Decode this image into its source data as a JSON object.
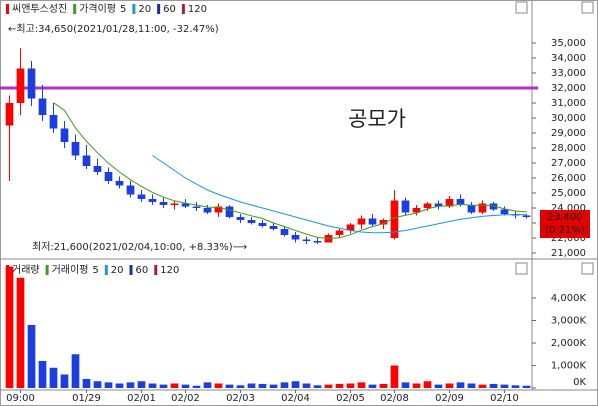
{
  "chart_data": {
    "type": "candlestick",
    "title": "씨앤투스성진",
    "up_color": "#ff0000",
    "down_color": "#1a3ee0",
    "categories": [
      null,
      "09:00",
      null,
      null,
      null,
      null,
      null,
      "01/29",
      null,
      null,
      null,
      null,
      "02/01",
      null,
      null,
      null,
      "02/02",
      null,
      null,
      null,
      null,
      "02/03",
      null,
      null,
      null,
      null,
      "02/04",
      null,
      null,
      null,
      null,
      "02/05",
      null,
      null,
      null,
      "02/08",
      null,
      null,
      null,
      null,
      "02/09",
      null,
      null,
      null,
      null,
      "02/10",
      null,
      null
    ],
    "ohlc": [
      [
        29500,
        31500,
        25800,
        31000
      ],
      [
        31000,
        34650,
        30200,
        33300
      ],
      [
        33300,
        33800,
        30800,
        31300
      ],
      [
        31300,
        32200,
        29800,
        30200
      ],
      [
        30200,
        31000,
        29000,
        29300
      ],
      [
        29300,
        29800,
        28000,
        28400
      ],
      [
        28400,
        28900,
        27200,
        27500
      ],
      [
        27500,
        28200,
        26600,
        26800
      ],
      [
        26800,
        27300,
        26200,
        26400
      ],
      [
        26400,
        26700,
        25600,
        25800
      ],
      [
        25800,
        26100,
        25300,
        25500
      ],
      [
        25500,
        25800,
        24700,
        24900
      ],
      [
        24900,
        25200,
        24400,
        24600
      ],
      [
        24600,
        24900,
        24200,
        24400
      ],
      [
        24400,
        24700,
        24000,
        24200
      ],
      [
        24200,
        24500,
        23900,
        24300
      ],
      [
        24300,
        24600,
        24000,
        24100
      ],
      [
        24100,
        24400,
        23800,
        24000
      ],
      [
        24000,
        24200,
        23600,
        23700
      ],
      [
        23700,
        24300,
        23400,
        24100
      ],
      [
        24100,
        24200,
        23300,
        23400
      ],
      [
        23400,
        23600,
        23000,
        23200
      ],
      [
        23200,
        23400,
        22900,
        23000
      ],
      [
        23000,
        23200,
        22700,
        22800
      ],
      [
        22800,
        23000,
        22500,
        22600
      ],
      [
        22600,
        22800,
        22100,
        22200
      ],
      [
        22200,
        22400,
        21700,
        21900
      ],
      [
        21900,
        22100,
        21600,
        21800
      ],
      [
        21800,
        22000,
        21600,
        21700
      ],
      [
        21700,
        22300,
        21700,
        22200
      ],
      [
        22200,
        22600,
        22000,
        22500
      ],
      [
        22500,
        23000,
        22300,
        22900
      ],
      [
        22900,
        23500,
        22600,
        23300
      ],
      [
        23300,
        23600,
        22800,
        22900
      ],
      [
        22900,
        23300,
        22600,
        23200
      ],
      [
        22000,
        25200,
        21900,
        24500
      ],
      [
        24500,
        24700,
        23500,
        23700
      ],
      [
        23700,
        24200,
        23500,
        24000
      ],
      [
        24000,
        24400,
        23800,
        24300
      ],
      [
        24300,
        24500,
        23900,
        24100
      ],
      [
        24100,
        24800,
        24000,
        24600
      ],
      [
        24600,
        24900,
        24100,
        24200
      ],
      [
        24200,
        24400,
        23600,
        23700
      ],
      [
        23700,
        24500,
        23600,
        24300
      ],
      [
        24300,
        24400,
        23800,
        23900
      ],
      [
        23900,
        24100,
        23500,
        23600
      ],
      [
        23600,
        23800,
        23300,
        23500
      ],
      [
        23500,
        23600,
        23300,
        23400
      ]
    ],
    "ma_label": "가격이평",
    "ma_series": [
      {
        "name": "5",
        "color": "#3f9a1f",
        "values": [
          null,
          null,
          null,
          null,
          31020,
          30500,
          29340,
          28440,
          27680,
          26980,
          26400,
          25880,
          25440,
          25040,
          24720,
          24480,
          24320,
          24200,
          24060,
          24040,
          23860,
          23680,
          23480,
          23300,
          23000,
          22760,
          22500,
          22260,
          22040,
          21960,
          22020,
          22220,
          22520,
          22760,
          22960,
          23360,
          23520,
          23660,
          23940,
          24120,
          24140,
          24240,
          24180,
          24180,
          24140,
          23940,
          23800,
          23740
        ]
      },
      {
        "name": "20",
        "color": "#1e95d8",
        "values": [
          null,
          null,
          null,
          null,
          null,
          null,
          null,
          null,
          null,
          null,
          null,
          null,
          null,
          27500,
          27000,
          26500,
          26000,
          25600,
          25200,
          24900,
          24650,
          24400,
          24200,
          24000,
          23800,
          23600,
          23400,
          23200,
          23000,
          22800,
          22650,
          22500,
          22400,
          22350,
          22350,
          22400,
          22500,
          22650,
          22800,
          22950,
          23100,
          23250,
          23350,
          23450,
          23500,
          23550,
          23550,
          23550
        ]
      }
    ],
    "ma_legend_extra": [
      {
        "name": "60",
        "color": "#1a2f9a"
      },
      {
        "name": "120",
        "color": "#a0203a"
      }
    ],
    "ylim": [
      20667,
      37733
    ],
    "yticks": [
      {
        "value": 21000,
        "label": "21,000"
      },
      {
        "value": 22000,
        "label": "22,000"
      },
      {
        "value": 23000,
        "label": "23,000"
      },
      {
        "value": 24000,
        "label": "24,000"
      },
      {
        "value": 25000,
        "label": "25,000"
      },
      {
        "value": 26000,
        "label": "26,000"
      },
      {
        "value": 27000,
        "label": "27,000"
      },
      {
        "value": 28000,
        "label": "28,000"
      },
      {
        "value": 29000,
        "label": "29,000"
      },
      {
        "value": 30000,
        "label": "30,000"
      },
      {
        "value": 31000,
        "label": "31,000"
      },
      {
        "value": 32000,
        "label": "32,000"
      },
      {
        "value": 33000,
        "label": "33,000"
      },
      {
        "value": 34000,
        "label": "34,000"
      },
      {
        "value": 35000,
        "label": "35,000"
      }
    ],
    "ipo_line": {
      "label": "공모가",
      "value": 32000,
      "color": "#b030c0"
    },
    "high_note": "←최고:34,650(2021/01/28,11:00, -32.47%)",
    "low_note": "최저:21,600(2021/02/04,10:00, +8.33%)⟶",
    "current_price": {
      "value": 23400,
      "label": "23,400",
      "change": "(0.21%)"
    },
    "volume": {
      "title": "거래량",
      "ma_label": "거래이평",
      "ma_names": [
        "5",
        "20",
        "60",
        "120"
      ],
      "values": [
        5400000,
        4900000,
        2800000,
        1200000,
        900000,
        600000,
        1500000,
        400000,
        300000,
        250000,
        200000,
        250000,
        300000,
        200000,
        150000,
        200000,
        150000,
        100000,
        250000,
        200000,
        150000,
        120000,
        200000,
        180000,
        150000,
        250000,
        300000,
        200000,
        120000,
        150000,
        180000,
        200000,
        250000,
        150000,
        180000,
        1000000,
        250000,
        200000,
        300000,
        150000,
        200000,
        250000,
        200000,
        150000,
        180000,
        150000,
        120000,
        100000
      ],
      "ylim": [
        0,
        5600000
      ],
      "yticks": [
        {
          "value": 0,
          "label": "0K"
        },
        {
          "value": 1000000,
          "label": "1,000K"
        },
        {
          "value": 2000000,
          "label": "2,000K"
        },
        {
          "value": 3000000,
          "label": "3,000K"
        },
        {
          "value": 4000000,
          "label": "4,000K"
        }
      ]
    }
  }
}
